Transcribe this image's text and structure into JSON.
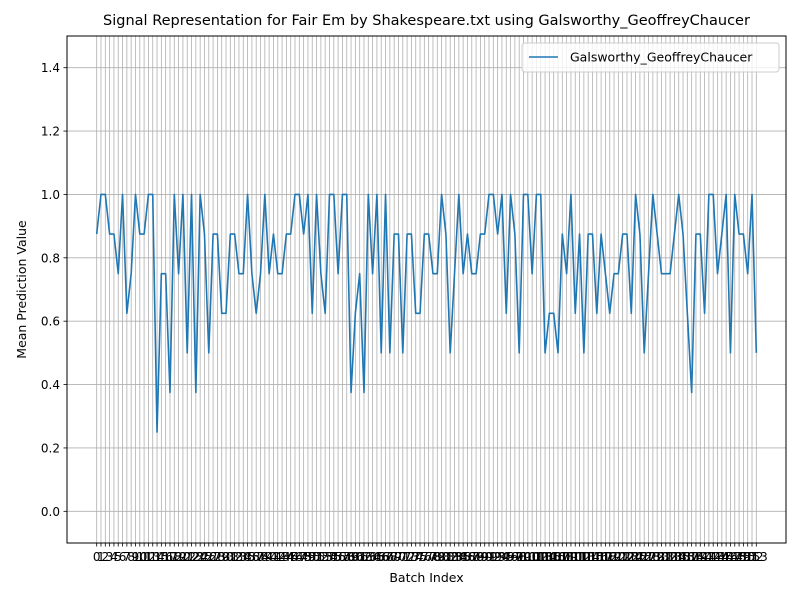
{
  "chart_data": {
    "type": "line",
    "title": "Signal Representation for Fair Em by Shakespeare.txt using Galsworthy_GeoffreyChaucer",
    "xlabel": "Batch Index",
    "ylabel": "Mean Prediction Value",
    "ylim": [
      -0.1,
      1.5
    ],
    "yticks": [
      0.0,
      0.2,
      0.4,
      0.6,
      0.8,
      1.0,
      1.2,
      1.4
    ],
    "grid": true,
    "legend_position": "top-right",
    "series": [
      {
        "name": "Galsworthy_GeoffreyChaucer",
        "color": "#1f77b4",
        "values": [
          0.875,
          1.0,
          1.0,
          0.875,
          0.875,
          0.75,
          1.0,
          0.625,
          0.75,
          1.0,
          0.875,
          0.875,
          1.0,
          1.0,
          0.25,
          0.75,
          0.75,
          0.375,
          1.0,
          0.75,
          1.0,
          0.5,
          1.0,
          0.375,
          1.0,
          0.875,
          0.5,
          0.875,
          0.875,
          0.625,
          0.625,
          0.875,
          0.875,
          0.75,
          0.75,
          1.0,
          0.75,
          0.625,
          0.75,
          1.0,
          0.75,
          0.875,
          0.75,
          0.75,
          0.875,
          0.875,
          1.0,
          1.0,
          0.875,
          1.0,
          0.625,
          1.0,
          0.75,
          0.625,
          1.0,
          1.0,
          0.75,
          1.0,
          1.0,
          0.375,
          0.625,
          0.75,
          0.375,
          1.0,
          0.75,
          1.0,
          0.5,
          1.0,
          0.5,
          0.875,
          0.875,
          0.5,
          0.875,
          0.875,
          0.625,
          0.625,
          0.875,
          0.875,
          0.75,
          0.75,
          1.0,
          0.875,
          0.5,
          0.75,
          1.0,
          0.75,
          0.875,
          0.75,
          0.75,
          0.875,
          0.875,
          1.0,
          1.0,
          0.875,
          1.0,
          0.625,
          1.0,
          0.875,
          0.5,
          1.0,
          1.0,
          0.75,
          1.0,
          1.0,
          0.5,
          0.625,
          0.625,
          0.5,
          0.875,
          0.75,
          1.0,
          0.625,
          0.875,
          0.5,
          0.875,
          0.875,
          0.625,
          0.875,
          0.75,
          0.625,
          0.75,
          0.75,
          0.875,
          0.875,
          0.625,
          1.0,
          0.875,
          0.5,
          0.75,
          1.0,
          0.875,
          0.75,
          0.75,
          0.75,
          0.875,
          1.0,
          0.875,
          0.625,
          0.375,
          0.875,
          0.875,
          0.625,
          1.0,
          1.0,
          0.75,
          0.875,
          1.0,
          0.5,
          1.0,
          0.875,
          0.875,
          0.75,
          1.0,
          0.5
        ]
      }
    ]
  }
}
